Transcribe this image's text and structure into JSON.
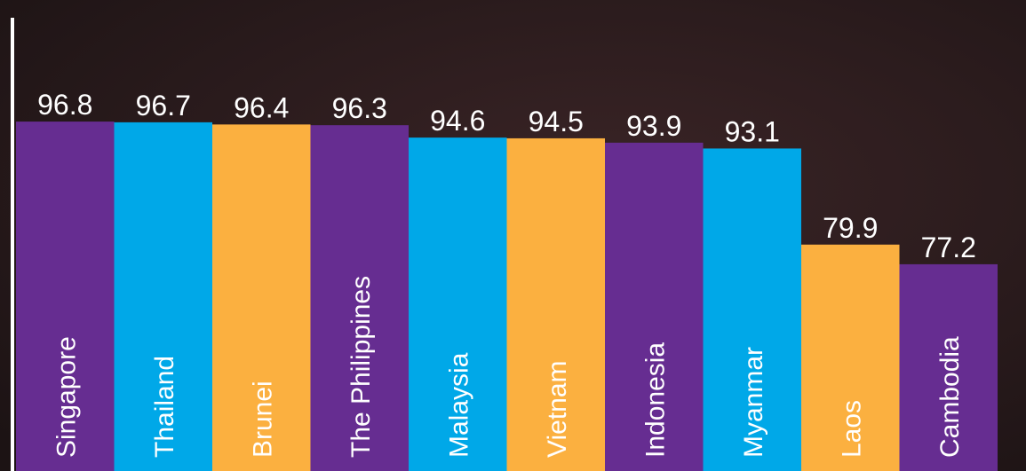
{
  "chart_data": {
    "type": "bar",
    "categories": [
      "Singapore",
      "Thailand",
      "Brunei",
      "The Philippines",
      "Malaysia",
      "Vietnam",
      "Indonesia",
      "Myanmar",
      "Laos",
      "Cambodia"
    ],
    "values": [
      96.8,
      96.7,
      96.4,
      96.3,
      94.6,
      94.5,
      93.9,
      93.1,
      79.9,
      77.2
    ],
    "colors": [
      "#662d91",
      "#00a8e8",
      "#fbb040"
    ],
    "ylim": [
      48.8,
      113.5
    ]
  }
}
